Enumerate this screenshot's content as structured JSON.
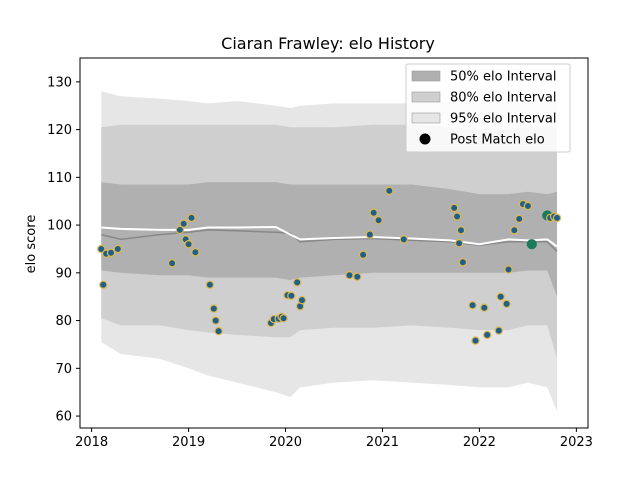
{
  "chart_data": {
    "type": "scatter",
    "title": "Ciaran Frawley: elo History",
    "xlabel": "",
    "ylabel": "elo score",
    "xlim": [
      2017.88,
      2023.12
    ],
    "ylim": [
      57.5,
      135
    ],
    "x_ticks": [
      2018,
      2019,
      2020,
      2021,
      2022,
      2023
    ],
    "x_tick_labels": [
      "2018",
      "2019",
      "2020",
      "2021",
      "2022",
      "2023"
    ],
    "y_ticks": [
      60,
      70,
      80,
      90,
      100,
      110,
      120,
      130
    ],
    "y_tick_labels": [
      "60",
      "70",
      "80",
      "90",
      "100",
      "110",
      "120",
      "130"
    ],
    "grid": false,
    "legend_position": "top-right",
    "colors": {
      "band_50": "#b0b0b0",
      "band_80": "#cfcfcf",
      "band_95": "#e6e6e6",
      "median_line": "#ffffff",
      "mean_line": "#888888",
      "point_fill": "#1f5f8b",
      "point_edge": "#e0b84a",
      "point_recent": "#1a7a5a"
    },
    "legend": [
      {
        "label": "50% elo Interval",
        "kind": "band_50"
      },
      {
        "label": "80% elo Interval",
        "kind": "band_80"
      },
      {
        "label": "95% elo Interval",
        "kind": "band_95"
      },
      {
        "label": "Post Match elo",
        "kind": "point"
      }
    ],
    "bands": {
      "x": [
        2018.1,
        2018.3,
        2018.7,
        2019.0,
        2019.2,
        2019.5,
        2019.9,
        2020.05,
        2020.15,
        2020.5,
        2020.9,
        2021.3,
        2021.7,
        2022.0,
        2022.3,
        2022.5,
        2022.7,
        2022.8
      ],
      "p95_low": [
        75.5,
        73,
        72,
        70,
        68.5,
        67,
        65,
        64,
        66,
        67,
        67.5,
        67,
        66.5,
        66,
        66,
        67,
        66,
        61
      ],
      "p80_low": [
        80.5,
        79,
        79,
        78,
        77.5,
        77,
        76.5,
        76.5,
        78,
        78.5,
        78.5,
        79,
        78.5,
        78,
        78,
        79,
        79,
        72
      ],
      "p50_low": [
        90.5,
        90,
        89.5,
        89.5,
        89,
        89,
        89,
        88.5,
        89,
        89.5,
        90,
        90,
        90,
        90,
        90,
        90.5,
        90.5,
        85
      ],
      "p50_high": [
        109,
        108.5,
        108.5,
        108.5,
        109,
        109,
        109,
        108.5,
        108.5,
        108.5,
        108.5,
        108.5,
        107.5,
        106.5,
        106.5,
        107,
        106.5,
        107
      ],
      "p80_high": [
        120.5,
        121,
        121,
        121,
        121,
        121,
        121,
        120.5,
        120.5,
        120.5,
        121,
        121,
        120.5,
        120,
        120,
        120.5,
        120.5,
        120.5
      ],
      "p95_high": [
        128,
        127,
        126.5,
        126,
        125.5,
        126,
        125,
        124.5,
        125,
        125.5,
        125.5,
        125.5,
        126,
        125.5,
        125.5,
        126,
        126,
        126
      ],
      "median": [
        99.5,
        99.2,
        99,
        99,
        99.5,
        99.5,
        99.6,
        98,
        97,
        97.3,
        97.5,
        97.2,
        96.8,
        96,
        97,
        96.8,
        97,
        95.5
      ],
      "mean": [
        98,
        97,
        98,
        98.5,
        99,
        98.8,
        98.5,
        98.3,
        96.5,
        97,
        97.2,
        96.8,
        96.5,
        95.8,
        96.5,
        96.5,
        96.5,
        94.5
      ]
    },
    "x": [
      2018.1,
      2018.12,
      2018.15,
      2018.2,
      2018.27,
      2018.83,
      2018.91,
      2018.95,
      2018.97,
      2019.0,
      2019.03,
      2019.07,
      2019.22,
      2019.26,
      2019.28,
      2019.31,
      2019.85,
      2019.88,
      2019.93,
      2019.96,
      2019.98,
      2020.02,
      2020.06,
      2020.12,
      2020.15,
      2020.17,
      2020.66,
      2020.74,
      2020.8,
      2020.87,
      2020.91,
      2020.96,
      2021.07,
      2021.22,
      2021.74,
      2021.77,
      2021.79,
      2021.81,
      2021.83,
      2021.93,
      2021.96,
      2022.05,
      2022.08,
      2022.2,
      2022.22,
      2022.28,
      2022.3,
      2022.36,
      2022.41,
      2022.45,
      2022.5,
      2022.54,
      2022.7,
      2022.73,
      2022.77,
      2022.8
    ],
    "y": [
      95,
      87.5,
      94,
      94.2,
      95,
      92,
      99,
      100.3,
      97,
      96,
      101.5,
      94.3,
      87.5,
      82.5,
      80,
      77.8,
      79.5,
      80.3,
      80.4,
      80.8,
      80.5,
      85.3,
      85.2,
      88,
      83,
      84.3,
      89.5,
      89.2,
      93.8,
      98,
      102.6,
      101,
      107.2,
      97,
      103.6,
      101.8,
      96.2,
      98.9,
      92.2,
      83.2,
      75.8,
      82.7,
      77,
      77.9,
      85,
      83.5,
      90.7,
      98.9,
      101.3,
      104.4,
      104,
      96,
      102,
      101.5,
      101.8,
      101.5
    ],
    "recent_points": [
      51,
      52
    ]
  }
}
